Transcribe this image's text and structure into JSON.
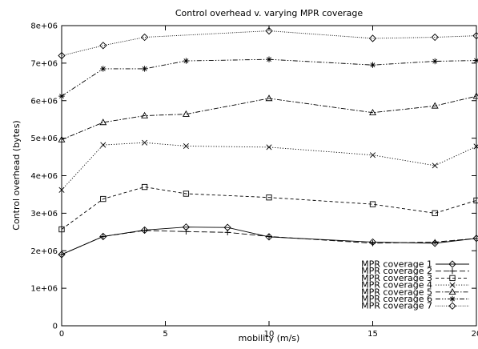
{
  "chart_data": {
    "type": "line",
    "title": "Control overhead v. varying MPR coverage",
    "xlabel": "mobility (m/s)",
    "ylabel": "Control overhead (bytes)",
    "xlim": [
      0,
      20
    ],
    "ylim": [
      0,
      8000000
    ],
    "xticks": [
      0,
      5,
      10,
      15,
      20
    ],
    "xtick_labels": [
      "0",
      "5",
      "10",
      "15",
      "20"
    ],
    "yticks": [
      0,
      1000000,
      2000000,
      3000000,
      4000000,
      5000000,
      6000000,
      7000000,
      8000000
    ],
    "ytick_labels": [
      "0",
      "1e+06",
      "2e+06",
      "3e+06",
      "4e+06",
      "5e+06",
      "6e+06",
      "7e+06",
      "8e+06"
    ],
    "grid": false,
    "legend_position": "lower-right",
    "x": [
      0,
      2,
      4,
      6,
      8,
      10,
      15,
      18,
      20
    ],
    "series": [
      {
        "name": "MPR coverage 1",
        "marker": "diamond",
        "dash": "solid",
        "values": [
          1900000,
          2380000,
          2550000,
          2630000,
          2620000,
          2370000,
          2230000,
          2200000,
          2330000
        ]
      },
      {
        "name": "MPR coverage 2",
        "marker": "plus",
        "dash": "long",
        "values": [
          1900000,
          2380000,
          2540000,
          2510000,
          2490000,
          2380000,
          2200000,
          2230000,
          2330000
        ]
      },
      {
        "name": "MPR coverage 3",
        "marker": "square",
        "dash": "medium",
        "values": [
          2570000,
          3380000,
          3700000,
          3520000,
          null,
          3420000,
          3240000,
          3000000,
          3340000
        ]
      },
      {
        "name": "MPR coverage 4",
        "marker": "x",
        "dash": "dotted",
        "values": [
          3620000,
          4820000,
          4880000,
          4790000,
          null,
          4760000,
          4550000,
          4270000,
          4780000
        ]
      },
      {
        "name": "MPR coverage 5",
        "marker": "triangle",
        "dash": "dashdot",
        "values": [
          4960000,
          5420000,
          5600000,
          5640000,
          null,
          6060000,
          5680000,
          5860000,
          6120000
        ]
      },
      {
        "name": "MPR coverage 6",
        "marker": "star",
        "dash": "dashdotdot",
        "values": [
          6120000,
          6850000,
          6850000,
          7060000,
          null,
          7100000,
          6950000,
          7050000,
          7070000
        ]
      },
      {
        "name": "MPR coverage 7",
        "marker": "diamond",
        "dash": "finedot",
        "values": [
          7200000,
          7470000,
          7690000,
          null,
          null,
          7860000,
          7660000,
          7690000,
          7730000
        ]
      }
    ]
  }
}
